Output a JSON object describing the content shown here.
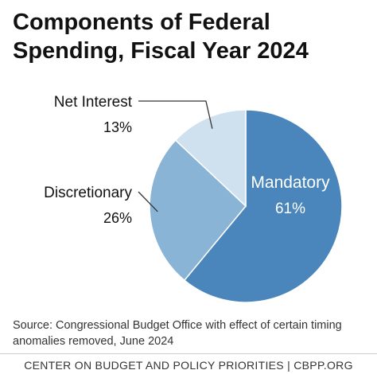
{
  "title_lines": [
    "Components of Federal",
    "Spending, Fiscal Year 2024"
  ],
  "source_note": "Source: Congressional Budget Office with effect of certain timing anomalies removed, June 2024",
  "footer": "CENTER ON BUDGET AND POLICY PRIORITIES | CBPP.ORG",
  "chart_data": {
    "type": "pie",
    "title": "Components of Federal Spending, Fiscal Year 2024",
    "slices": [
      {
        "label": "Mandatory",
        "value": 61,
        "display": "61%",
        "color": "#4a86bb"
      },
      {
        "label": "Discretionary",
        "value": 26,
        "display": "26%",
        "color": "#8ab4d6"
      },
      {
        "label": "Net Interest",
        "value": 13,
        "display": "13%",
        "color": "#cfe0ee"
      }
    ],
    "start_angle_deg": 0,
    "direction": "clockwise"
  }
}
